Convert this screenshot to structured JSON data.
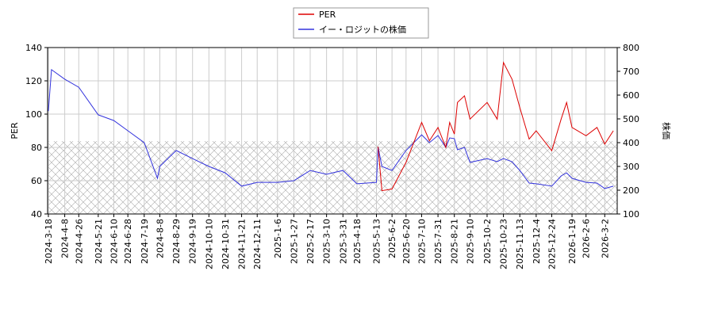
{
  "chart_data": {
    "type": "line",
    "ylabel": "PER",
    "y2label": "株価",
    "x": [
      "2024-3-18",
      "2024-3-22",
      "2024-4-8",
      "2024-4-26",
      "2024-5-21",
      "2024-6-10",
      "2024-6-28",
      "2024-7-19",
      "2024-8-5",
      "2024-8-8",
      "2024-8-29",
      "2024-9-19",
      "2024-10-10",
      "2024-10-31",
      "2024-11-21",
      "2024-12-11",
      "2025-1-6",
      "2025-1-27",
      "2025-2-17",
      "2025-3-10",
      "2025-3-31",
      "2025-4-18",
      "2025-5-13",
      "2025-5-15",
      "2025-5-20",
      "2025-6-2",
      "2025-6-20",
      "2025-7-10",
      "2025-7-20",
      "2025-7-31",
      "2025-8-10",
      "2025-8-15",
      "2025-8-21",
      "2025-8-25",
      "2025-9-3",
      "2025-9-10",
      "2025-10-2",
      "2025-10-15",
      "2025-10-23",
      "2025-11-3",
      "2025-11-13",
      "2025-11-25",
      "2025-12-4",
      "2025-12-24",
      "2026-1-5",
      "2026-1-12",
      "2026-1-19",
      "2026-2-6",
      "2026-2-20",
      "2026-3-2",
      "2026-3-13"
    ],
    "series": [
      {
        "name": "PER",
        "color": "#dd0000",
        "axis": "y",
        "values": [
          null,
          null,
          null,
          null,
          null,
          null,
          null,
          null,
          null,
          null,
          null,
          null,
          null,
          null,
          null,
          null,
          null,
          null,
          null,
          null,
          null,
          null,
          null,
          80.5,
          54,
          55,
          71,
          95,
          84,
          92,
          80,
          95,
          88,
          107,
          111,
          97,
          107,
          97,
          131,
          121,
          104,
          85,
          90,
          78,
          97,
          107,
          92,
          87,
          92,
          82,
          90
        ]
      },
      {
        "name": "イー・ロジットの株価",
        "color": "#3333dd",
        "axis": "y2",
        "values": [
          533,
          707,
          667,
          633,
          517,
          493,
          450,
          400,
          250,
          300,
          367,
          333,
          300,
          273,
          217,
          233,
          233,
          240,
          283,
          267,
          283,
          227,
          233,
          383,
          300,
          283,
          367,
          433,
          400,
          430,
          380,
          420,
          417,
          370,
          380,
          317,
          333,
          320,
          333,
          320,
          283,
          230,
          227,
          217,
          260,
          273,
          250,
          233,
          230,
          207,
          217
        ]
      }
    ],
    "xlim": [
      "2024-3-17",
      "2026-3-18"
    ],
    "xticks": [
      "2024-3-18",
      "2024-4-8",
      "2024-4-26",
      "2024-5-21",
      "2024-6-10",
      "2024-6-28",
      "2024-7-19",
      "2024-8-8",
      "2024-8-29",
      "2024-9-19",
      "2024-10-10",
      "2024-10-31",
      "2024-11-21",
      "2024-12-11",
      "2025-1-6",
      "2025-1-27",
      "2025-2-17",
      "2025-3-10",
      "2025-3-31",
      "2025-4-18",
      "2025-5-13",
      "2025-6-2",
      "2025-6-20",
      "2025-7-10",
      "2025-7-31",
      "2025-8-21",
      "2025-9-10",
      "2025-10-2",
      "2025-10-23",
      "2025-11-13",
      "2025-12-4",
      "2025-12-24",
      "2026-1-19",
      "2026-2-6",
      "2026-3-2"
    ],
    "ylim": [
      40,
      140
    ],
    "yticks": [
      40,
      60,
      80,
      100,
      120,
      140
    ],
    "y2lim": [
      100,
      800
    ],
    "y2ticks": [
      100,
      200,
      300,
      400,
      500,
      600,
      700,
      800
    ],
    "grid": true,
    "legend": "top"
  }
}
